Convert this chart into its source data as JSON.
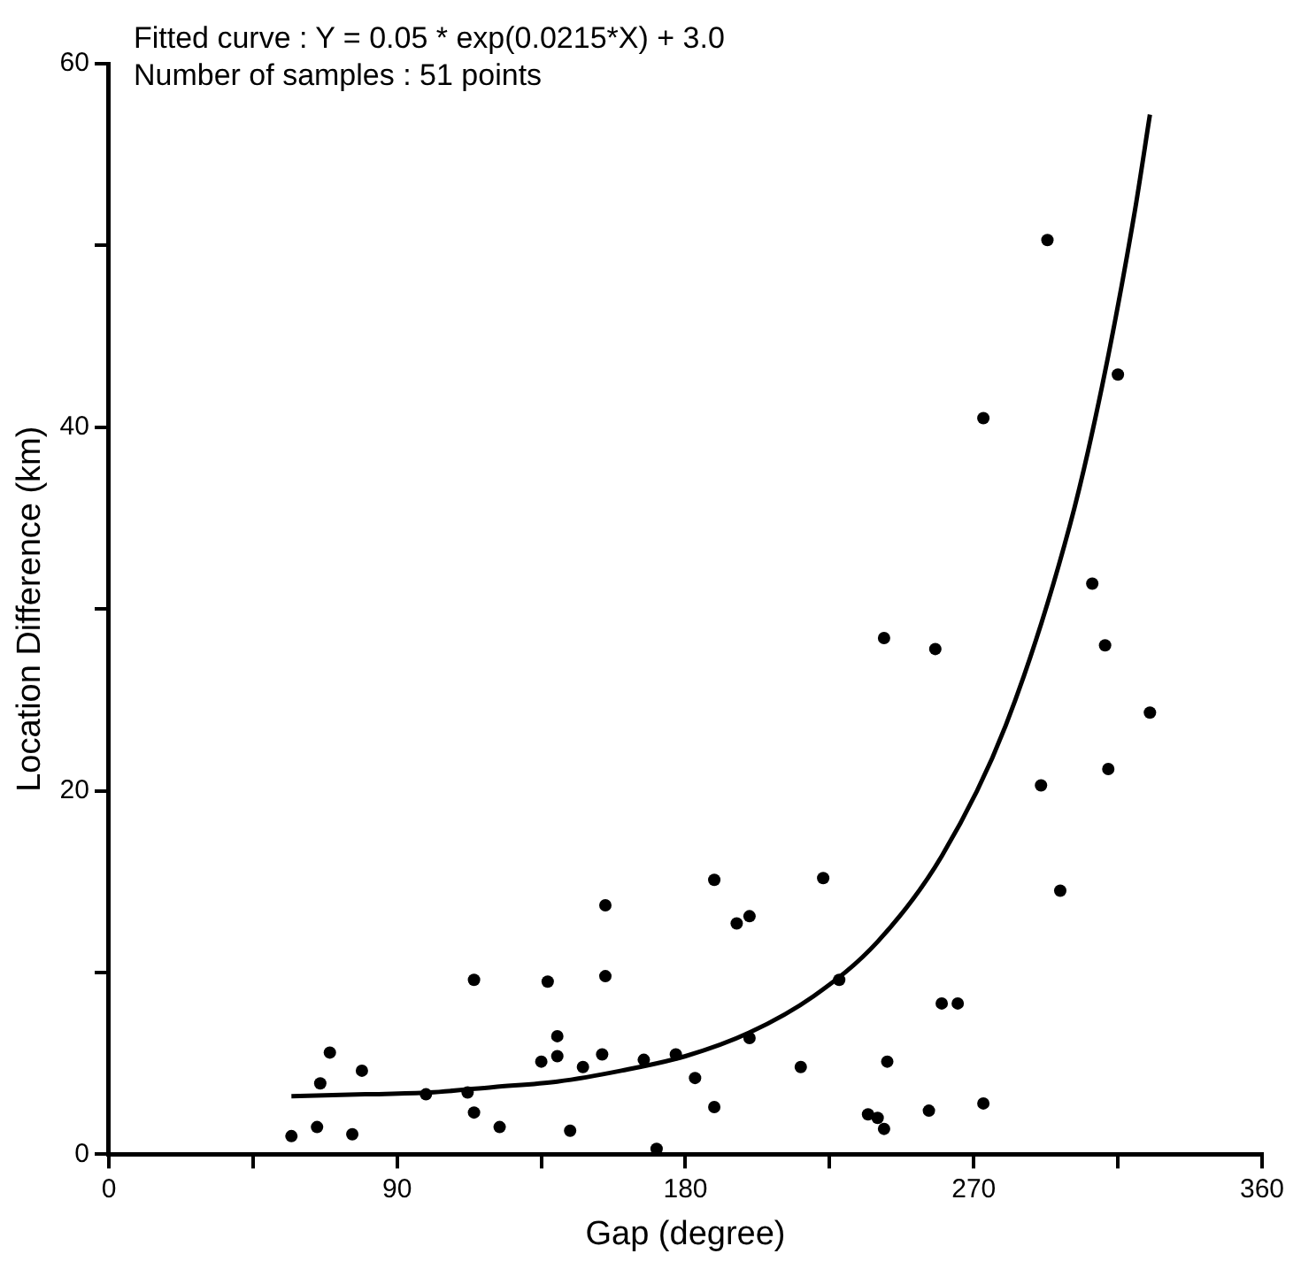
{
  "chart_data": {
    "type": "scatter",
    "xlabel": "Gap (degree)",
    "ylabel": "Location Difference (km)",
    "annotations": [
      "Fitted curve : Y = 0.05 * exp(0.0215*X) + 3.0",
      "Number of samples : 51 points"
    ],
    "xlim": [
      0,
      360
    ],
    "xticks": [
      0,
      {
        "value": 45,
        "label": null
      },
      90,
      {
        "value": 135,
        "label": null
      },
      180,
      {
        "value": 225,
        "label": null
      },
      270,
      {
        "value": 315,
        "label": null
      },
      360
    ],
    "ylim": [
      0,
      60
    ],
    "yticks": [
      0,
      {
        "value": 10,
        "label": null
      },
      20,
      {
        "value": 30,
        "label": null
      },
      40,
      {
        "value": 50,
        "label": null
      },
      60
    ],
    "grid": false,
    "legend": false,
    "marker": "circle",
    "series": [
      {
        "type": "scatter",
        "color": "#000000",
        "x": [
          57,
          65,
          76,
          66,
          69,
          79,
          99,
          112,
          114,
          122,
          114,
          137,
          135,
          140,
          140,
          144,
          148,
          154,
          155,
          155,
          167,
          171,
          177,
          183,
          189,
          189,
          196,
          200,
          200,
          216,
          223,
          228,
          237,
          240,
          242,
          243,
          242,
          258,
          256,
          260,
          265,
          273,
          273,
          291,
          293,
          297,
          307,
          311,
          312,
          315,
          325
        ],
        "values": [
          1.0,
          1.5,
          1.1,
          3.9,
          5.6,
          4.6,
          3.3,
          3.4,
          2.3,
          1.5,
          9.6,
          9.5,
          5.1,
          6.5,
          5.4,
          1.3,
          4.8,
          5.5,
          9.8,
          13.7,
          5.2,
          0.3,
          5.5,
          4.2,
          2.6,
          15.1,
          12.7,
          13.1,
          6.4,
          4.8,
          15.2,
          9.6,
          2.2,
          2.0,
          1.4,
          5.1,
          28.4,
          27.8,
          2.4,
          8.3,
          8.3,
          2.8,
          40.5,
          20.3,
          50.3,
          14.5,
          31.4,
          28.0,
          21.2,
          42.9,
          24.3
        ]
      },
      {
        "type": "line",
        "color": "#000000",
        "marker": "none",
        "line_style": "solid",
        "x": [
          57,
          80,
          100,
          120,
          140,
          160,
          180,
          200,
          220,
          240,
          260,
          280,
          300,
          310,
          320,
          325
        ],
        "values": [
          3.2,
          3.3,
          3.4,
          3.7,
          4.0,
          4.6,
          5.4,
          6.7,
          8.7,
          11.7,
          16.4,
          23.6,
          34.6,
          42.2,
          51.6,
          57.2
        ]
      }
    ]
  }
}
